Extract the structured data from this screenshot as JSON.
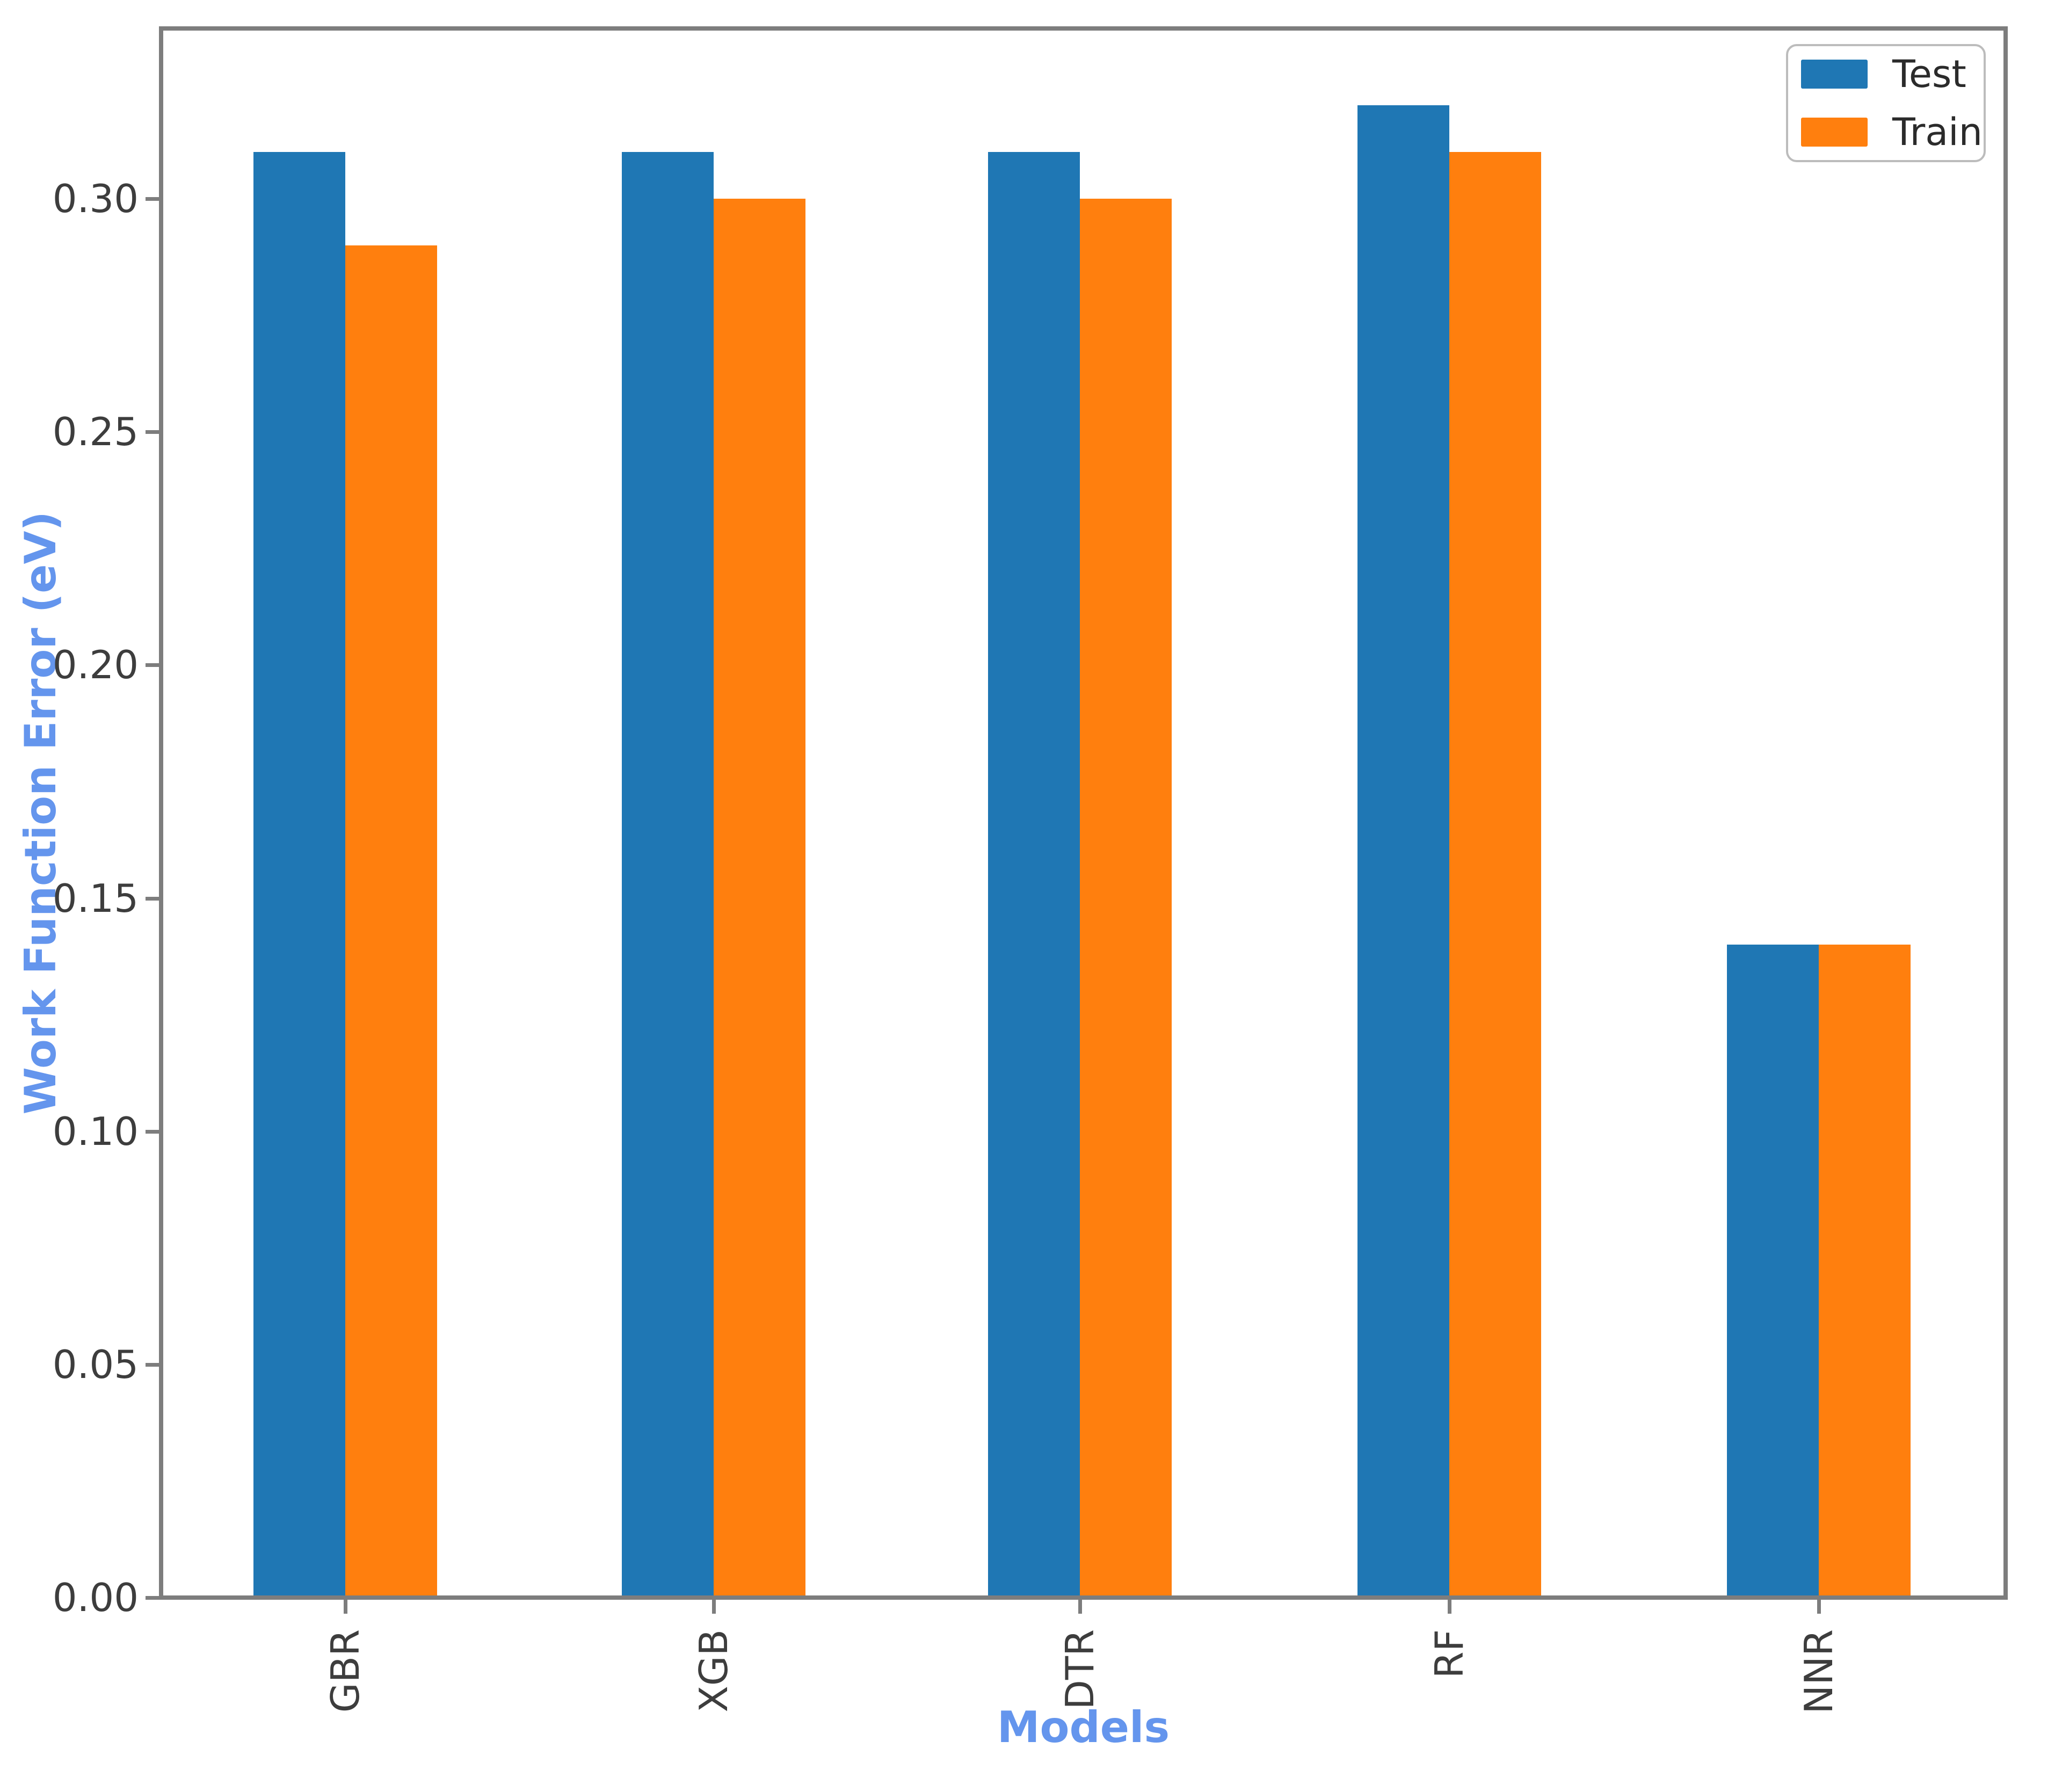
{
  "chart_data": {
    "type": "bar",
    "categories": [
      "GBR",
      "XGB",
      "DTR",
      "RF",
      "NNR"
    ],
    "series": [
      {
        "name": "Test",
        "color": "#1f77b4",
        "values": [
          0.31,
          0.31,
          0.31,
          0.32,
          0.14
        ]
      },
      {
        "name": "Train",
        "color": "#ff7f0e",
        "values": [
          0.29,
          0.3,
          0.3,
          0.31,
          0.14
        ]
      }
    ],
    "xlabel": "Models",
    "ylabel": "Work Function Error (eV)",
    "yticks": [
      "0.00",
      "0.05",
      "0.10",
      "0.15",
      "0.20",
      "0.25",
      "0.30"
    ],
    "ylim": [
      0,
      0.337
    ],
    "grid": false,
    "legend_position": "upper right",
    "axis_label_color": "#6495ED",
    "tick_label_color": "#3d3d3d",
    "spine_color": "#7d7d7d"
  }
}
